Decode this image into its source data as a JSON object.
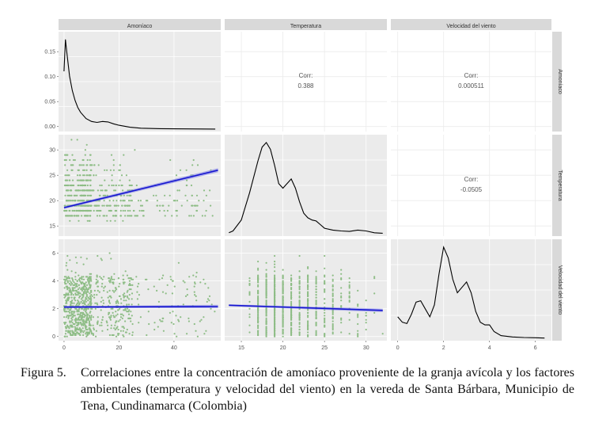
{
  "chart_data": {
    "type": "scatter-matrix",
    "variables": [
      "Amoníaco",
      "Temperatura",
      "Velocidad del viento"
    ],
    "columns": [
      {
        "key": "amoniaco",
        "label": "Amoníaco",
        "range": [
          -2,
          57
        ],
        "ticks": [
          0,
          20,
          40
        ]
      },
      {
        "key": "temperatura",
        "label": "Temperatura",
        "range": [
          13,
          32.5
        ],
        "ticks": [
          15,
          20,
          25,
          30
        ]
      },
      {
        "key": "viento",
        "label": "Velocidad del viento",
        "range": [
          -0.3,
          6.7
        ],
        "ticks": [
          0,
          2,
          4,
          6
        ]
      }
    ],
    "rows": [
      {
        "key": "amoniaco",
        "label": "Amoníaco",
        "range": [
          -0.01,
          0.19
        ],
        "ticks": [
          0.0,
          0.05,
          0.1,
          0.15
        ],
        "tick_labels": [
          "0.00",
          "0.05",
          "0.10",
          "0.15"
        ]
      },
      {
        "key": "temperatura",
        "label": "Temperatura",
        "range": [
          13,
          33
        ],
        "ticks": [
          15,
          20,
          25,
          30
        ],
        "tick_labels": [
          "15",
          "20",
          "25",
          "30"
        ]
      },
      {
        "key": "viento",
        "label": "Velocidad del viento",
        "range": [
          -0.3,
          7
        ],
        "ticks": [
          0,
          2,
          4,
          6
        ],
        "tick_labels": [
          "0",
          "2",
          "4",
          "6"
        ]
      }
    ],
    "correlations": [
      {
        "row": "amoniaco",
        "col": "temperatura",
        "label": "Corr:",
        "value": "0.388"
      },
      {
        "row": "amoniaco",
        "col": "viento",
        "label": "Corr:",
        "value": "0.000511"
      },
      {
        "row": "temperatura",
        "col": "viento",
        "label": "Corr:",
        "value": "-0.0505"
      }
    ],
    "densities": {
      "amoniaco": {
        "x": [
          0,
          0.5,
          1,
          2,
          3,
          4,
          5,
          6,
          8,
          10,
          12,
          14,
          16,
          18,
          20,
          24,
          28,
          35,
          45,
          55
        ],
        "y": [
          0.12,
          0.186,
          0.16,
          0.11,
          0.08,
          0.06,
          0.045,
          0.035,
          0.022,
          0.016,
          0.014,
          0.016,
          0.015,
          0.011,
          0.008,
          0.004,
          0.002,
          0.001,
          0.0005,
          0.0002
        ]
      },
      "temperatura": {
        "x": [
          13.5,
          14,
          15,
          16,
          17,
          17.5,
          18,
          18.5,
          19,
          19.5,
          20,
          20.5,
          21,
          21.5,
          22,
          22.5,
          23,
          23.5,
          24,
          24.5,
          25,
          26,
          27,
          28,
          29,
          30,
          31,
          32
        ],
        "y": [
          0.002,
          0.006,
          0.03,
          0.09,
          0.16,
          0.19,
          0.2,
          0.185,
          0.15,
          0.11,
          0.1,
          0.11,
          0.12,
          0.1,
          0.07,
          0.045,
          0.035,
          0.03,
          0.028,
          0.02,
          0.012,
          0.008,
          0.006,
          0.005,
          0.008,
          0.006,
          0.002,
          0.001
        ]
      },
      "viento": {
        "x": [
          0,
          0.2,
          0.4,
          0.6,
          0.8,
          1,
          1.2,
          1.4,
          1.6,
          1.8,
          2,
          2.2,
          2.4,
          2.6,
          2.8,
          3,
          3.2,
          3.4,
          3.6,
          3.8,
          4,
          4.2,
          4.5,
          5,
          5.5,
          6,
          6.4
        ],
        "y": [
          0.16,
          0.12,
          0.11,
          0.18,
          0.27,
          0.28,
          0.22,
          0.16,
          0.25,
          0.48,
          0.68,
          0.6,
          0.44,
          0.34,
          0.38,
          0.42,
          0.34,
          0.2,
          0.12,
          0.1,
          0.1,
          0.05,
          0.02,
          0.01,
          0.006,
          0.004,
          0.002
        ]
      }
    },
    "regressions": [
      {
        "row": "temperatura",
        "col": "amoniaco",
        "x": [
          0,
          56
        ],
        "y": [
          18.6,
          26.0
        ],
        "band": 0.4
      },
      {
        "row": "viento",
        "col": "amoniaco",
        "x": [
          0,
          56
        ],
        "y": [
          2.12,
          2.16
        ],
        "band": 0.12
      },
      {
        "row": "viento",
        "col": "temperatura",
        "x": [
          13.5,
          32
        ],
        "y": [
          2.25,
          1.88
        ],
        "band": 0.12
      }
    ],
    "point_color": "#8ebd86",
    "line_color": "#1515d0",
    "band_color": "#7a7ae6",
    "density_color": "#000000",
    "panel_bg": "#ebebeb",
    "strip_bg": "#d9d9d9",
    "grid": true
  },
  "caption": {
    "label": "Figura 5.",
    "text": "Correlaciones entre la concentración de amoníaco proveniente de la granja avícola y los factores ambientales (temperatura y velocidad del viento) en la vereda de Santa Bárbara, Municipio de Tena, Cundinamarca (Colombia)"
  }
}
